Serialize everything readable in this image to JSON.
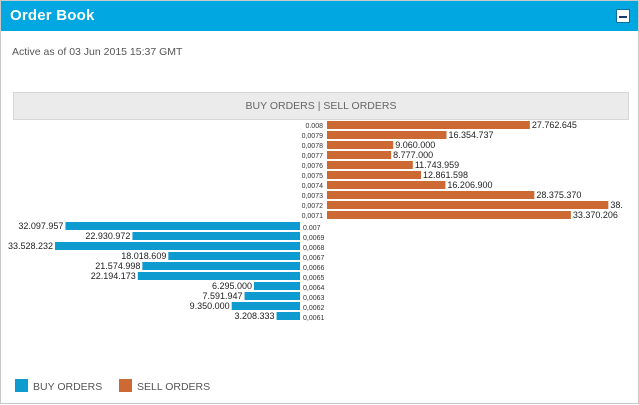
{
  "window": {
    "title": "Order Book"
  },
  "status": {
    "active_as_of": "Active as of 03 Jun 2015 15:37 GMT"
  },
  "chart_header": "BUY ORDERS | SELL ORDERS",
  "legend": {
    "buy_label": "BUY ORDERS",
    "sell_label": "SELL ORDERS"
  },
  "colors": {
    "header": "#00a7e1",
    "buy": "#0e9bd0",
    "sell": "#cd6a34"
  },
  "icons": {
    "collapse": "minimize-icon"
  },
  "chart_data": {
    "type": "bar",
    "orientation": "horizontal-mirrored",
    "sell_orders": [
      {
        "price": "0.008",
        "volume": 27762645,
        "label": "27.762.645"
      },
      {
        "price": "0,0079",
        "volume": 16354737,
        "label": "16.354.737"
      },
      {
        "price": "0,0078",
        "volume": 9060000,
        "label": "9.060.000"
      },
      {
        "price": "0,0077",
        "volume": 8777000,
        "label": "8.777.000"
      },
      {
        "price": "0,0076",
        "volume": 11743959,
        "label": "11.743.959"
      },
      {
        "price": "0,0075",
        "volume": 12861598,
        "label": "12.861.598"
      },
      {
        "price": "0,0074",
        "volume": 16206900,
        "label": "16.206.900"
      },
      {
        "price": "0,0073",
        "volume": 28375370,
        "label": "28.375.370"
      },
      {
        "price": "0,0072",
        "volume": 38500000,
        "label": "38."
      },
      {
        "price": "0,0071",
        "volume": 33370206,
        "label": "33.370.206"
      }
    ],
    "buy_orders": [
      {
        "price": "0.007",
        "volume": 32097957,
        "label": "32.097.957"
      },
      {
        "price": "0,0069",
        "volume": 22930972,
        "label": "22.930.972"
      },
      {
        "price": "0,0068",
        "volume": 33528232,
        "label": "33.528.232"
      },
      {
        "price": "0,0067",
        "volume": 18018609,
        "label": "18.018.609"
      },
      {
        "price": "0,0066",
        "volume": 21574998,
        "label": "21.574.998"
      },
      {
        "price": "0,0065",
        "volume": 22194173,
        "label": "22.194.173"
      },
      {
        "price": "0,0064",
        "volume": 6295000,
        "label": "6.295.000"
      },
      {
        "price": "0,0063",
        "volume": 7591947,
        "label": "7.591.947"
      },
      {
        "price": "0,0062",
        "volume": 9350000,
        "label": "9.350.000"
      },
      {
        "price": "0,0061",
        "volume": 3208333,
        "label": "3.208.333"
      }
    ]
  }
}
